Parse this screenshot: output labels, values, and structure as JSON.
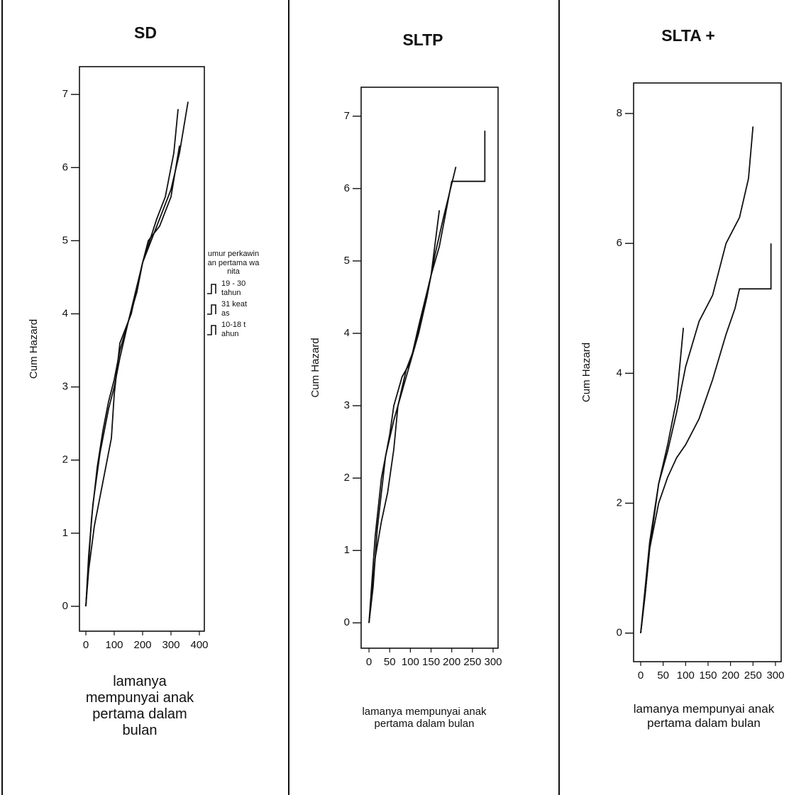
{
  "chart_data": [
    {
      "type": "line",
      "title": "SD",
      "ylabel": "Cum Hazard",
      "xlabel": "lamanya mempunyai anak pertama dalam bulan",
      "legend_title": "umur perkawinan pertama wanita",
      "xlim": [
        -22.5,
        417.5
      ],
      "xticks": [
        0,
        100,
        200,
        300,
        400
      ],
      "ylim": [
        -0.34,
        7.38
      ],
      "yticks": [
        0,
        1,
        2,
        3,
        4,
        5,
        6,
        7
      ],
      "series": [
        {
          "name": "19 - 30 tahun",
          "color": "#111111",
          "x": [
            0,
            10,
            20,
            40,
            60,
            80,
            100,
            120,
            150,
            180,
            200,
            230,
            260,
            300,
            330,
            360
          ],
          "values": [
            0,
            0.6,
            1.2,
            1.9,
            2.4,
            2.8,
            3.1,
            3.5,
            3.9,
            4.3,
            4.7,
            5.0,
            5.3,
            5.7,
            6.2,
            6.9
          ]
        },
        {
          "name": "31 keatas",
          "color": "#111111",
          "x": [
            0,
            10,
            25,
            50,
            80,
            100,
            120,
            150,
            200,
            250,
            280,
            310,
            325
          ],
          "values": [
            0,
            0.7,
            1.4,
            2.1,
            2.7,
            3.0,
            3.4,
            3.9,
            4.7,
            5.3,
            5.6,
            6.2,
            6.8
          ]
        },
        {
          "name": "10-18 tahun",
          "color": "#111111",
          "x": [
            0,
            10,
            30,
            60,
            90,
            100,
            120,
            160,
            200,
            220,
            260,
            300,
            330
          ],
          "values": [
            0,
            0.5,
            1.1,
            1.7,
            2.3,
            2.9,
            3.6,
            4.0,
            4.7,
            5.0,
            5.2,
            5.6,
            6.3
          ]
        }
      ]
    },
    {
      "type": "line",
      "title": "SLTP",
      "ylabel": "Cum Hazard",
      "xlabel": "lamanya mempunyai anak pertama dalam bulan",
      "xlim": [
        -19,
        312
      ],
      "xticks": [
        0,
        50,
        100,
        150,
        200,
        250,
        300
      ],
      "ylim": [
        -0.35,
        7.4
      ],
      "yticks": [
        0,
        1,
        2,
        3,
        4,
        5,
        6,
        7
      ],
      "series": [
        {
          "color": "#111111",
          "x": [
            0,
            5,
            15,
            30,
            45,
            60,
            70,
            90,
            110,
            130,
            150,
            170,
            200,
            280,
            280
          ],
          "values": [
            0,
            0.3,
            0.9,
            1.4,
            1.8,
            2.4,
            3.0,
            3.5,
            3.8,
            4.3,
            4.8,
            5.2,
            6.1,
            6.1,
            6.8
          ]
        },
        {
          "color": "#111111",
          "x": [
            0,
            5,
            15,
            30,
            50,
            60,
            80,
            100,
            120,
            140,
            160,
            180,
            210
          ],
          "values": [
            0,
            0.4,
            1.2,
            2.0,
            2.6,
            3.0,
            3.4,
            3.6,
            4.0,
            4.5,
            5.1,
            5.6,
            6.3
          ]
        },
        {
          "color": "#111111",
          "x": [
            0,
            10,
            20,
            40,
            60,
            80,
            100,
            120,
            150,
            170
          ],
          "values": [
            0,
            0.5,
            1.3,
            2.3,
            2.8,
            3.2,
            3.6,
            4.1,
            4.8,
            5.7
          ]
        }
      ]
    },
    {
      "type": "line",
      "title": "SLTA +",
      "ylabel": "Cum Hazard",
      "xlabel": "lamanya mempunyai anak pertama dalam bulan",
      "xlim": [
        -15.8,
        312.7
      ],
      "xticks": [
        0,
        50,
        100,
        150,
        200,
        250,
        300
      ],
      "ylim": [
        -0.44,
        8.47
      ],
      "yticks": [
        0,
        2,
        4,
        6,
        8
      ],
      "series": [
        {
          "color": "#111111",
          "x": [
            0,
            10,
            20,
            40,
            60,
            80,
            100,
            130,
            160,
            190,
            220,
            240,
            250
          ],
          "values": [
            0,
            0.6,
            1.3,
            2.3,
            2.8,
            3.4,
            4.1,
            4.8,
            5.2,
            6.0,
            6.4,
            7.0,
            7.8
          ]
        },
        {
          "color": "#111111",
          "x": [
            0,
            10,
            20,
            40,
            60,
            80,
            100,
            130,
            160,
            190,
            210,
            220,
            290,
            290
          ],
          "values": [
            0,
            0.6,
            1.3,
            2.0,
            2.4,
            2.7,
            2.9,
            3.3,
            3.9,
            4.6,
            5.0,
            5.3,
            5.3,
            6.0
          ]
        },
        {
          "color": "#111111",
          "x": [
            0,
            10,
            20,
            40,
            60,
            80,
            95
          ],
          "values": [
            0,
            0.7,
            1.4,
            2.3,
            2.9,
            3.6,
            4.7
          ]
        }
      ]
    }
  ]
}
